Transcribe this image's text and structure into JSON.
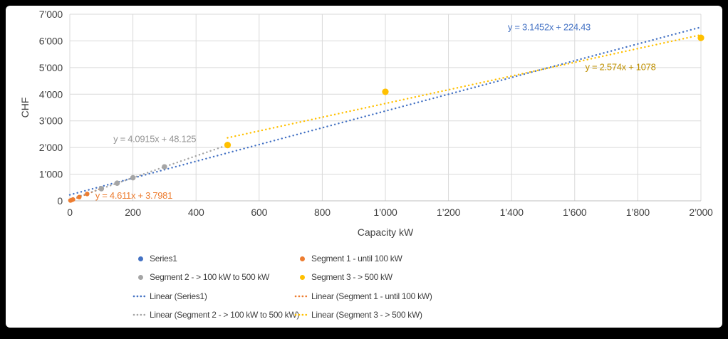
{
  "page": {
    "frame_color": "#000000",
    "chart_background": "#FFFFFF"
  },
  "colors": {
    "gridline": "#D9D9D9",
    "axis_line": "#BFBFBF",
    "tick_text": "#404040",
    "series1_blue": "#4472C4",
    "segment1_orange": "#ED7D31",
    "segment2_gray": "#A5A5A5",
    "segment3_yellow": "#FFC000",
    "equation_gray": "#959595",
    "equation_gold": "#BF9000"
  },
  "chart_data": {
    "type": "scatter",
    "title": "",
    "xlabel": "Capacity kW",
    "ylabel": "CHF",
    "xlim": [
      0,
      2000
    ],
    "ylim": [
      0,
      7000
    ],
    "grid": true,
    "legend_position": "bottom",
    "x_ticks": {
      "values": [
        0,
        200,
        400,
        600,
        800,
        1000,
        1200,
        1400,
        1600,
        1800,
        2000
      ],
      "labels": [
        "0",
        "200",
        "400",
        "600",
        "800",
        "1’000",
        "1’200",
        "1’400",
        "1’600",
        "1’800",
        "2’000"
      ]
    },
    "y_ticks": {
      "values": [
        0,
        1000,
        2000,
        3000,
        4000,
        5000,
        6000,
        7000
      ],
      "labels": [
        "0",
        "1’000",
        "2’000",
        "3’000",
        "4’000",
        "5’000",
        "6’000",
        "7’000"
      ]
    },
    "series": [
      {
        "id": "series1",
        "name": "Series1",
        "color": "#4472C4",
        "marker_radius": 3.5,
        "points_visible": false,
        "points": []
      },
      {
        "id": "segment1",
        "name": "Segment 1 - until 100 kW",
        "color": "#ED7D31",
        "marker_radius": 3.2,
        "points_visible": true,
        "points": [
          [
            2,
            13
          ],
          [
            5,
            27
          ],
          [
            10,
            50
          ],
          [
            30,
            142
          ],
          [
            55,
            257
          ]
        ]
      },
      {
        "id": "segment2",
        "name": "Segment 2 - > 100 kW to 500 kW",
        "color": "#A5A5A5",
        "marker_radius": 3.8,
        "points_visible": true,
        "points": [
          [
            100,
            457
          ],
          [
            150,
            662
          ],
          [
            200,
            866
          ],
          [
            300,
            1276
          ]
        ]
      },
      {
        "id": "segment3",
        "name": "Segment 3 - > 500 kW",
        "color": "#FFC000",
        "marker_radius": 4.6,
        "points_visible": true,
        "points": [
          [
            500,
            2094
          ],
          [
            1000,
            4090
          ],
          [
            2000,
            6115
          ]
        ]
      }
    ],
    "trendlines": [
      {
        "id": "series1",
        "name": "Linear (Series1)",
        "color": "#4472C4",
        "slope": 3.1452,
        "intercept": 224.43,
        "x_range": [
          0,
          2000
        ],
        "equation": "y = 3.1452x + 224.43",
        "label_pos": [
          1519,
          6520
        ]
      },
      {
        "id": "segment1",
        "name": "Linear (Segment 1 - until 100 kW)",
        "color": "#ED7D31",
        "slope": 4.611,
        "intercept": 3.7981,
        "x_range": [
          0,
          100
        ],
        "equation": "y = 4.611x + 3.7981",
        "label_pos": [
          203,
          200
        ]
      },
      {
        "id": "segment2",
        "name": "Linear (Segment 2 - > 100 kW to 500 kW)",
        "color": "#A5A5A5",
        "label_color": "#959595",
        "slope": 4.0915,
        "intercept": 48.125,
        "x_range": [
          0,
          500
        ],
        "equation": "y = 4.0915x + 48.125",
        "label_pos": [
          269,
          2320
        ]
      },
      {
        "id": "segment3",
        "name": "Linear (Segment 3 - > 500 kW)",
        "color": "#FFC000",
        "label_color": "#BF9000",
        "slope": 2.574,
        "intercept": 1078,
        "x_range": [
          500,
          2000
        ],
        "equation": "y = 2.574x + 1078",
        "label_pos": [
          1745,
          5020
        ]
      }
    ],
    "legend": {
      "entries": [
        {
          "id": "series1",
          "row": 0,
          "col": 0,
          "swatch": "marker",
          "color": "#4472C4",
          "label": "Series1"
        },
        {
          "id": "segment1",
          "row": 0,
          "col": 1,
          "swatch": "marker",
          "color": "#ED7D31",
          "label": "Segment 1 - until 100 kW"
        },
        {
          "id": "segment2",
          "row": 1,
          "col": 0,
          "swatch": "marker",
          "color": "#A5A5A5",
          "label": "Segment 2 - > 100 kW to 500 kW"
        },
        {
          "id": "segment3",
          "row": 1,
          "col": 1,
          "swatch": "marker",
          "color": "#FFC000",
          "label": "Segment 3 - > 500 kW"
        },
        {
          "id": "linear-series1",
          "row": 2,
          "col": 0,
          "swatch": "dotted",
          "color": "#4472C4",
          "label": "Linear (Series1)"
        },
        {
          "id": "linear-segment1",
          "row": 2,
          "col": 1,
          "swatch": "dotted",
          "color": "#ED7D31",
          "label": "Linear (Segment 1 - until 100 kW)"
        },
        {
          "id": "linear-segment2",
          "row": 3,
          "col": 0,
          "swatch": "dotted",
          "color": "#A5A5A5",
          "label": "Linear (Segment 2 - > 100 kW to 500 kW)"
        },
        {
          "id": "linear-segment3",
          "row": 3,
          "col": 1,
          "swatch": "dotted",
          "color": "#FFC000",
          "label": "Linear (Segment 3 - > 500 kW)"
        }
      ]
    }
  }
}
